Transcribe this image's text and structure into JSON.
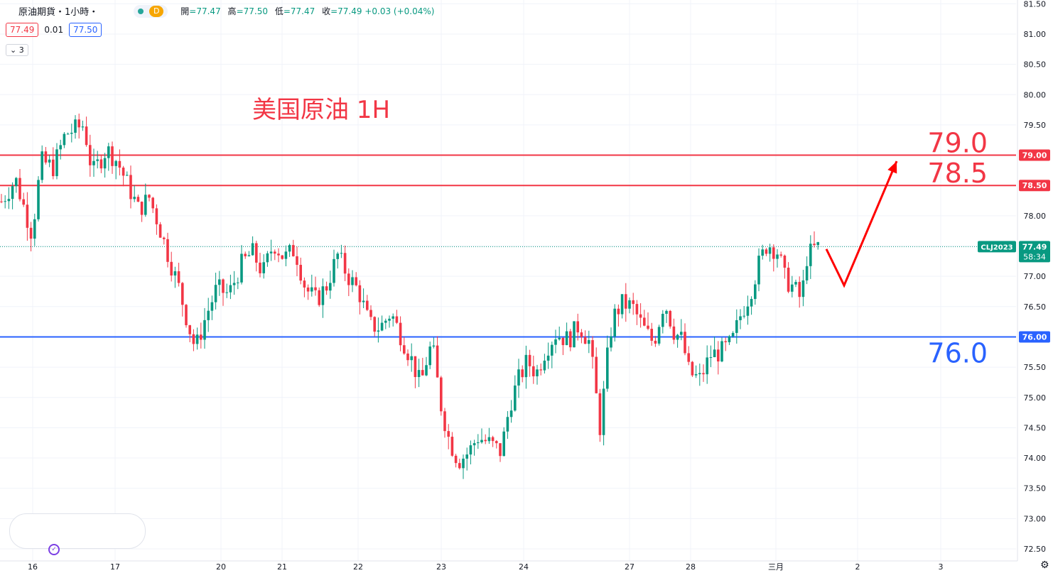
{
  "header": {
    "title": "原油期貨・1小時・",
    "interval_badge": "D",
    "ohlc": [
      {
        "label": "開",
        "value": "=77.47"
      },
      {
        "label": "高",
        "value": "=77.50"
      },
      {
        "label": "低",
        "value": "=77.47"
      },
      {
        "label": "收",
        "value": "=77.49 +0.03 (+0.04%)"
      }
    ],
    "bid": "77.49",
    "spread": "0.01",
    "ask": "77.50",
    "indicator_count": "3"
  },
  "colors": {
    "up": "#089981",
    "down": "#f23645",
    "resistance": "#f23645",
    "support": "#2962ff",
    "arrow": "#ff0000",
    "last_price": "#089981"
  },
  "chart_data": {
    "type": "candlestick",
    "symbol": "CLJ2023",
    "annotation_title": "美国原油 1H",
    "ylim": [
      72.25,
      81.5
    ],
    "y_ticks": [
      "72.50",
      "73.00",
      "73.50",
      "74.00",
      "74.50",
      "75.00",
      "75.50",
      "76.00",
      "76.50",
      "77.00",
      "77.50",
      "78.00",
      "78.50",
      "79.00",
      "79.50",
      "80.00",
      "80.50",
      "81.00",
      "81.50"
    ],
    "x_ticks": [
      "16",
      "17",
      "20",
      "21",
      "22",
      "23",
      "24",
      "27",
      "28",
      "三月",
      "2",
      "3"
    ],
    "horizontal_lines": [
      {
        "price": 79.0,
        "label": "79.0",
        "axis_label": "79.00",
        "color": "resistance"
      },
      {
        "price": 78.5,
        "label": "78.5",
        "axis_label": "78.50",
        "color": "resistance"
      },
      {
        "price": 76.0,
        "label": "76.0",
        "axis_label": "76.00",
        "color": "support"
      }
    ],
    "last_price": {
      "value": 77.49,
      "label": "77.49",
      "countdown": "58:34"
    },
    "projection_path": [
      [
        1163,
        77.45
      ],
      [
        1188,
        76.85
      ],
      [
        1262,
        78.9
      ]
    ],
    "waypoints": [
      [
        0,
        78.2
      ],
      [
        22,
        78.6
      ],
      [
        45,
        77.7
      ],
      [
        58,
        78.9
      ],
      [
        75,
        78.8
      ],
      [
        92,
        79.35
      ],
      [
        118,
        79.5
      ],
      [
        130,
        78.7
      ],
      [
        150,
        79.1
      ],
      [
        165,
        78.9
      ],
      [
        182,
        78.45
      ],
      [
        195,
        78.1
      ],
      [
        210,
        78.3
      ],
      [
        222,
        77.9
      ],
      [
        238,
        77.3
      ],
      [
        252,
        76.8
      ],
      [
        265,
        76.2
      ],
      [
        275,
        75.8
      ],
      [
        290,
        76.35
      ],
      [
        305,
        76.8
      ],
      [
        322,
        76.7
      ],
      [
        340,
        77.2
      ],
      [
        355,
        77.4
      ],
      [
        370,
        77.05
      ],
      [
        385,
        77.55
      ],
      [
        400,
        77.3
      ],
      [
        415,
        77.45
      ],
      [
        430,
        76.8
      ],
      [
        445,
        76.6
      ],
      [
        460,
        76.85
      ],
      [
        475,
        77.35
      ],
      [
        490,
        77.0
      ],
      [
        505,
        76.75
      ],
      [
        520,
        76.2
      ],
      [
        535,
        76.15
      ],
      [
        550,
        76.4
      ],
      [
        565,
        76.0
      ],
      [
        580,
        75.6
      ],
      [
        592,
        75.2
      ],
      [
        600,
        75.6
      ],
      [
        608,
        75.9
      ],
      [
        620,
        74.9
      ],
      [
        632,
        74.3
      ],
      [
        645,
        73.95
      ],
      [
        660,
        74.1
      ],
      [
        672,
        74.35
      ],
      [
        688,
        74.25
      ],
      [
        705,
        74.1
      ],
      [
        718,
        74.9
      ],
      [
        730,
        75.3
      ],
      [
        742,
        75.6
      ],
      [
        755,
        75.4
      ],
      [
        768,
        75.8
      ],
      [
        782,
        76.05
      ],
      [
        800,
        75.95
      ],
      [
        815,
        76.2
      ],
      [
        830,
        75.9
      ],
      [
        845,
        74.45
      ],
      [
        853,
        75.5
      ],
      [
        862,
        76.3
      ],
      [
        875,
        76.55
      ],
      [
        890,
        76.5
      ],
      [
        905,
        76.15
      ],
      [
        920,
        75.9
      ],
      [
        935,
        76.6
      ],
      [
        948,
        76.1
      ],
      [
        960,
        75.95
      ],
      [
        970,
        75.4
      ],
      [
        985,
        75.3
      ],
      [
        1000,
        75.7
      ],
      [
        1015,
        75.75
      ],
      [
        1030,
        75.9
      ],
      [
        1042,
        76.35
      ],
      [
        1055,
        76.7
      ],
      [
        1068,
        77.2
      ],
      [
        1080,
        77.55
      ],
      [
        1095,
        77.4
      ],
      [
        1105,
        76.95
      ],
      [
        1118,
        76.8
      ],
      [
        1128,
        76.6
      ],
      [
        1135,
        77.3
      ],
      [
        1145,
        77.45
      ],
      [
        1155,
        77.49
      ]
    ]
  }
}
